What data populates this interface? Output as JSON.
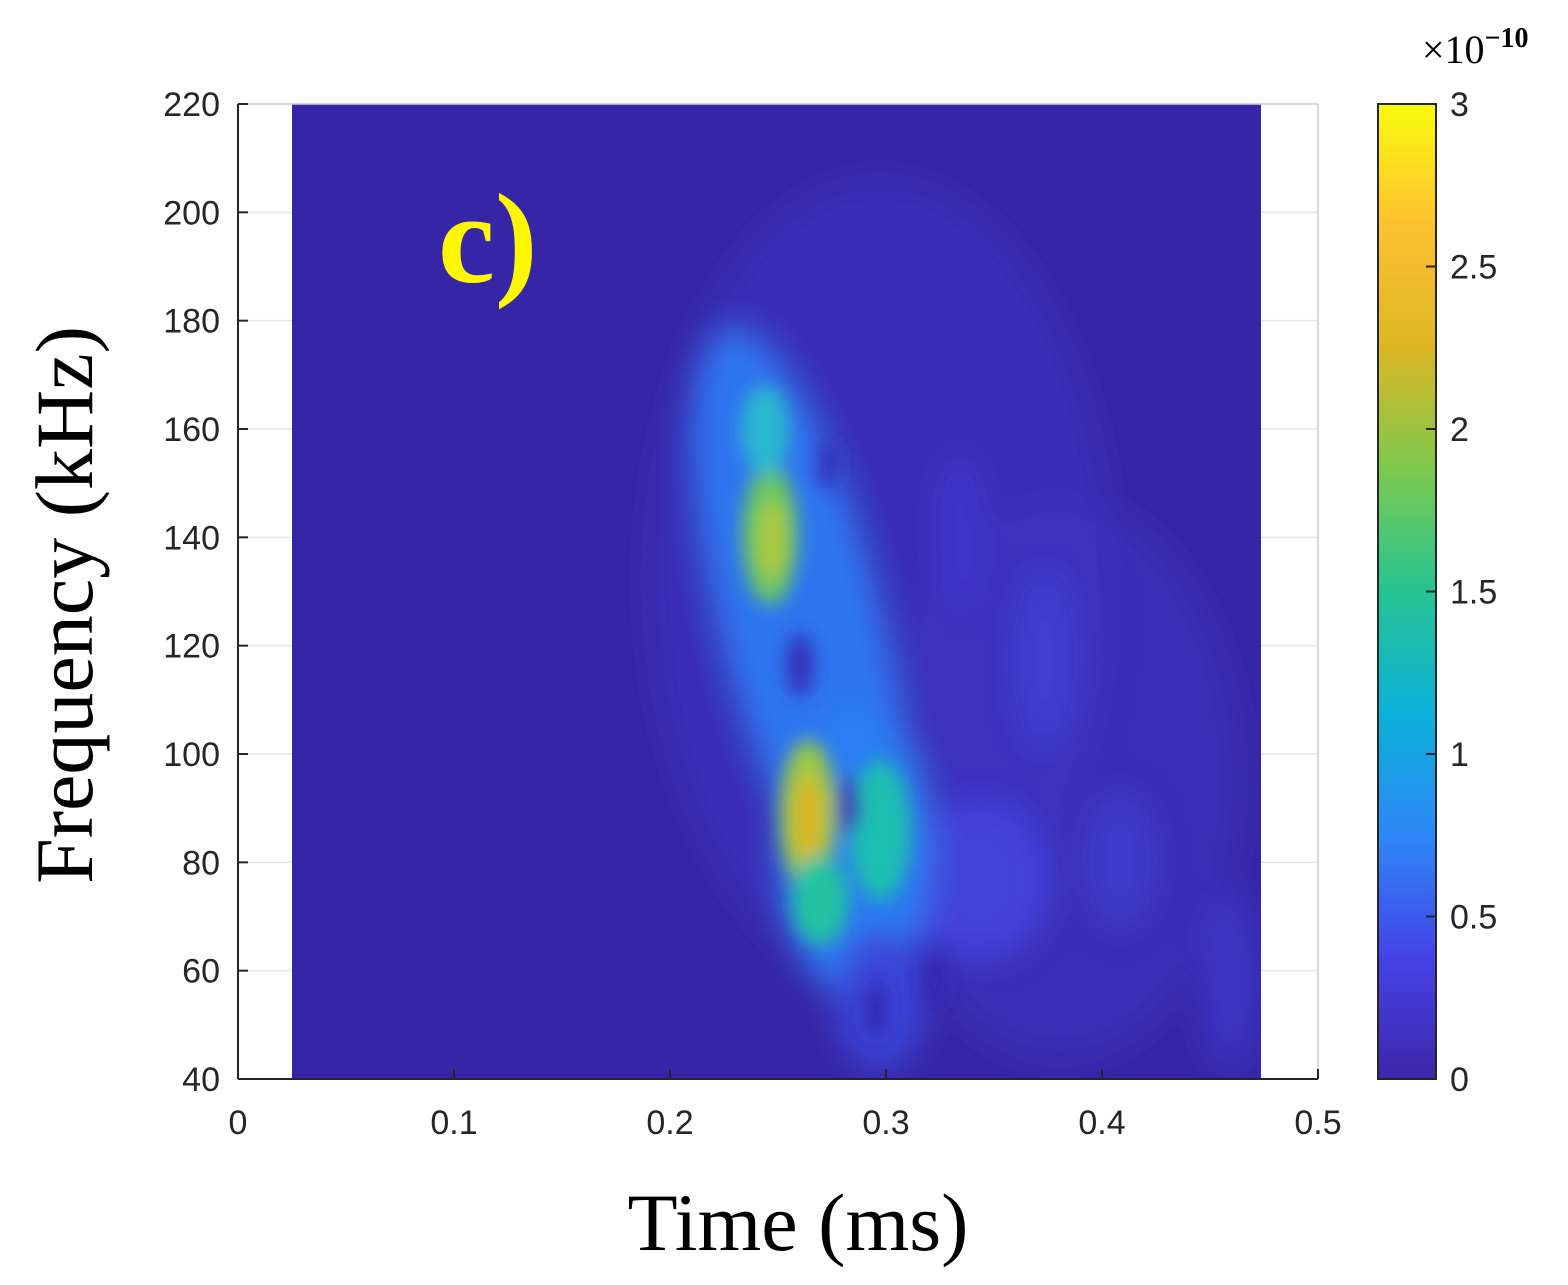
{
  "chart_data": {
    "type": "heatmap",
    "panel_label": "c)",
    "xlabel": "Time (ms)",
    "ylabel": "Frequency (kHz)",
    "xlim": [
      0,
      0.5
    ],
    "ylim": [
      40,
      220
    ],
    "xticks": [
      "0",
      "0.1",
      "0.2",
      "0.3",
      "0.4",
      "0.5"
    ],
    "yticks": [
      "40",
      "60",
      "80",
      "100",
      "120",
      "140",
      "160",
      "180",
      "200",
      "220"
    ],
    "data_time_range": [
      0.025,
      0.475
    ],
    "grid": true,
    "colorbar": {
      "colormap": "parula",
      "range": [
        0,
        3
      ],
      "ticks": [
        "0",
        "0.5",
        "1",
        "1.5",
        "2",
        "2.5",
        "3"
      ],
      "multiplier_base": "×10",
      "multiplier_exponent": "−10"
    },
    "peaks": [
      {
        "time_ms": 0.264,
        "freq_khz": 87,
        "value": 2.6
      },
      {
        "time_ms": 0.247,
        "freq_khz": 139,
        "value": 1.9
      },
      {
        "time_ms": 0.298,
        "freq_khz": 85,
        "value": 1.3
      }
    ],
    "colors": {
      "background": "#3626a7",
      "accent_label": "#fff700"
    }
  }
}
